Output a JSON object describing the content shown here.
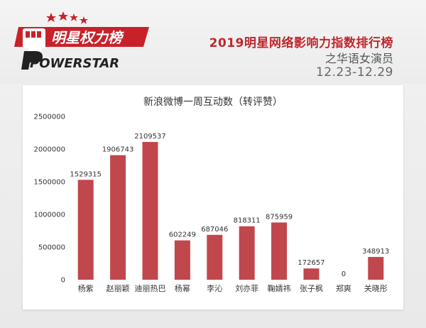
{
  "header": {
    "logo_cn": "明星权力榜",
    "logo_en": "POWERSTAR",
    "title": "2019明星网络影响力指数排行榜",
    "subtitle": "之华语女演员",
    "date_range": "12.23-12.29"
  },
  "colors": {
    "accent": "#c0262d",
    "bar": "#c0474c",
    "logo_red": "#c8212a"
  },
  "icons": [
    "fist-logo-icon",
    "star-icon"
  ],
  "chart_data": {
    "type": "bar",
    "title": "新浪微博一周互动数（转评赞）",
    "categories": [
      "杨紫",
      "赵丽颖",
      "迪丽热巴",
      "杨幂",
      "李沁",
      "刘亦菲",
      "鞠婧祎",
      "张子枫",
      "郑爽",
      "关晓彤"
    ],
    "values": [
      1529315,
      1906743,
      2109537,
      602249,
      687046,
      818311,
      875959,
      172657,
      0,
      348913
    ],
    "ylim": [
      0,
      2500000
    ],
    "yticks": [
      0,
      500000,
      1000000,
      1500000,
      2000000,
      2500000
    ],
    "grid": false,
    "legend": "none"
  }
}
